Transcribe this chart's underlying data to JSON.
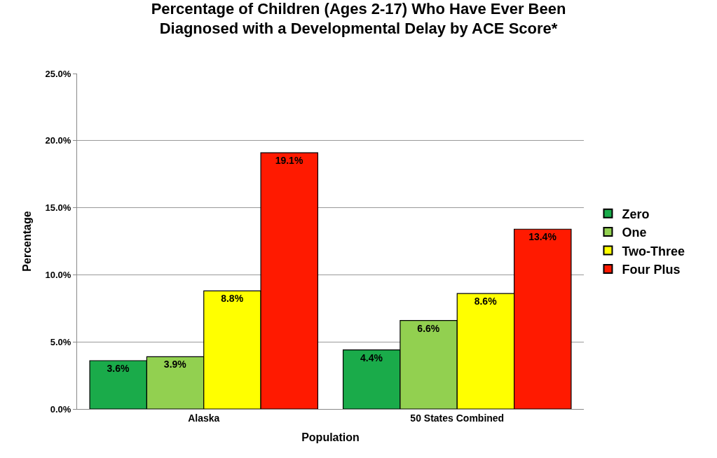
{
  "chart_data": {
    "type": "bar",
    "title": "Percentage of Children (Ages 2-17) Who Have Ever Been\nDiagnosed with a Developmental Delay by ACE Score*",
    "xlabel": "Population",
    "ylabel": "Percentage",
    "categories": [
      "Alaska",
      "50 States Combined"
    ],
    "series": [
      {
        "name": "Zero",
        "color": "#1aab4a",
        "values": [
          3.6,
          4.4
        ],
        "value_labels": [
          "3.6%",
          "4.4%"
        ]
      },
      {
        "name": "One",
        "color": "#92d050",
        "values": [
          3.9,
          6.6
        ],
        "value_labels": [
          "3.9%",
          "6.6%"
        ]
      },
      {
        "name": "Two-Three",
        "color": "#ffff00",
        "values": [
          8.8,
          8.6
        ],
        "value_labels": [
          "8.8%",
          "8.6%"
        ]
      },
      {
        "name": "Four Plus",
        "color": "#ff1a00",
        "values": [
          19.1,
          13.4
        ],
        "value_labels": [
          "19.1%",
          "13.4%"
        ]
      }
    ],
    "ylim": [
      0,
      25
    ],
    "yticks": [
      {
        "value": 0,
        "label": "0.0%"
      },
      {
        "value": 5,
        "label": "5.0%"
      },
      {
        "value": 10,
        "label": "10.0%"
      },
      {
        "value": 15,
        "label": "15.0%"
      },
      {
        "value": 20,
        "label": "20.0%"
      },
      {
        "value": 25,
        "label": "25.0%"
      }
    ],
    "grid": "y",
    "legend": "right"
  }
}
